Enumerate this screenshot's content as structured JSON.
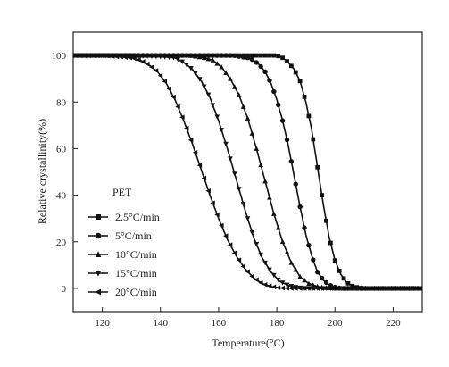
{
  "chart_data": {
    "type": "line",
    "xlabel": "Temperature(°C)",
    "ylabel": "Relative crystallinity(%)",
    "xlim": [
      110,
      230
    ],
    "ylim": [
      -10,
      110
    ],
    "xticks": [
      120,
      140,
      160,
      180,
      200,
      220
    ],
    "yticks": [
      0,
      20,
      40,
      60,
      80,
      100
    ],
    "grid": false,
    "legend": {
      "title": "PET",
      "placement": "lower-left"
    },
    "series": [
      {
        "name": "2.5°C/min",
        "marker": "square",
        "x": [
          110,
          120,
          130,
          140,
          150,
          160,
          170,
          175,
          180,
          182,
          184,
          186,
          188,
          190,
          192,
          194,
          196,
          198,
          200,
          202,
          204,
          206,
          208,
          210,
          215,
          220,
          230
        ],
        "y": [
          100,
          100,
          100,
          100,
          100,
          100,
          100,
          100,
          100,
          99,
          97,
          94,
          89,
          80,
          68,
          52,
          36,
          22,
          12,
          6,
          2.5,
          1,
          0.3,
          0,
          0,
          0,
          0
        ]
      },
      {
        "name": "5°C/min",
        "marker": "circle",
        "x": [
          110,
          120,
          130,
          140,
          150,
          160,
          165,
          170,
          172,
          174,
          176,
          178,
          180,
          182,
          184,
          186,
          188,
          190,
          192,
          194,
          196,
          198,
          200,
          202,
          204,
          210,
          220,
          230
        ],
        "y": [
          100,
          100,
          100,
          100,
          100,
          100,
          100,
          99,
          98,
          96,
          93,
          88,
          81,
          72,
          61,
          48,
          35,
          23,
          14,
          7,
          3.5,
          1.5,
          0.5,
          0,
          0,
          0,
          0,
          0
        ]
      },
      {
        "name": "10°C/min",
        "marker": "triangle-up",
        "x": [
          110,
          120,
          130,
          140,
          150,
          155,
          158,
          161,
          164,
          167,
          170,
          173,
          176,
          179,
          182,
          185,
          188,
          191,
          194,
          197,
          200,
          205,
          210,
          220,
          230
        ],
        "y": [
          100,
          100,
          100,
          100,
          100,
          99,
          98,
          95,
          90,
          83,
          73,
          60,
          46,
          32,
          20,
          11,
          5,
          2,
          0.8,
          0.2,
          0,
          0,
          0,
          0,
          0
        ]
      },
      {
        "name": "15°C/min",
        "marker": "triangle-down",
        "x": [
          110,
          120,
          130,
          140,
          145,
          148,
          151,
          154,
          157,
          160,
          163,
          166,
          169,
          172,
          175,
          178,
          181,
          184,
          187,
          190,
          195,
          200,
          210,
          220,
          230
        ],
        "y": [
          100,
          100,
          100,
          99.5,
          99,
          97,
          94,
          89,
          82,
          72,
          60,
          47,
          34,
          22,
          13,
          7,
          3,
          1.2,
          0.4,
          0,
          0,
          0,
          0,
          0,
          0
        ]
      },
      {
        "name": "20°C/min",
        "marker": "triangle-left",
        "x": [
          110,
          120,
          125,
          130,
          133,
          136,
          139,
          142,
          145,
          148,
          151,
          154,
          157,
          160,
          163,
          166,
          169,
          172,
          175,
          178,
          181,
          185,
          190,
          200,
          210,
          220,
          230
        ],
        "y": [
          100,
          100,
          99.5,
          99,
          98,
          96,
          93,
          88,
          81,
          72,
          62,
          51,
          40,
          30,
          21,
          14,
          8.5,
          4.5,
          2,
          0.8,
          0.2,
          0,
          0,
          0,
          0,
          0,
          0
        ]
      }
    ]
  }
}
